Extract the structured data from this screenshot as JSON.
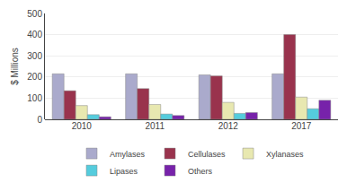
{
  "chart_data": {
    "type": "bar",
    "categories": [
      "2010",
      "2011",
      "2012",
      "2017"
    ],
    "series": [
      {
        "name": "Amylases",
        "color": "#aaaacc",
        "values": [
          215,
          215,
          210,
          215
        ]
      },
      {
        "name": "Cellulases",
        "color": "#99334d",
        "values": [
          135,
          145,
          205,
          400
        ]
      },
      {
        "name": "Xylanases",
        "color": "#e8e8b0",
        "values": [
          65,
          70,
          80,
          105
        ]
      },
      {
        "name": "Lipases",
        "color": "#55ccdd",
        "values": [
          22,
          25,
          28,
          50
        ]
      },
      {
        "name": "Others",
        "color": "#7722aa",
        "values": [
          12,
          18,
          32,
          90
        ]
      }
    ],
    "ylabel": "$ Millions",
    "ylim": [
      0,
      500
    ],
    "yticks": [
      0,
      100,
      200,
      300,
      400,
      500
    ],
    "grid": true,
    "legend": "bottom"
  }
}
